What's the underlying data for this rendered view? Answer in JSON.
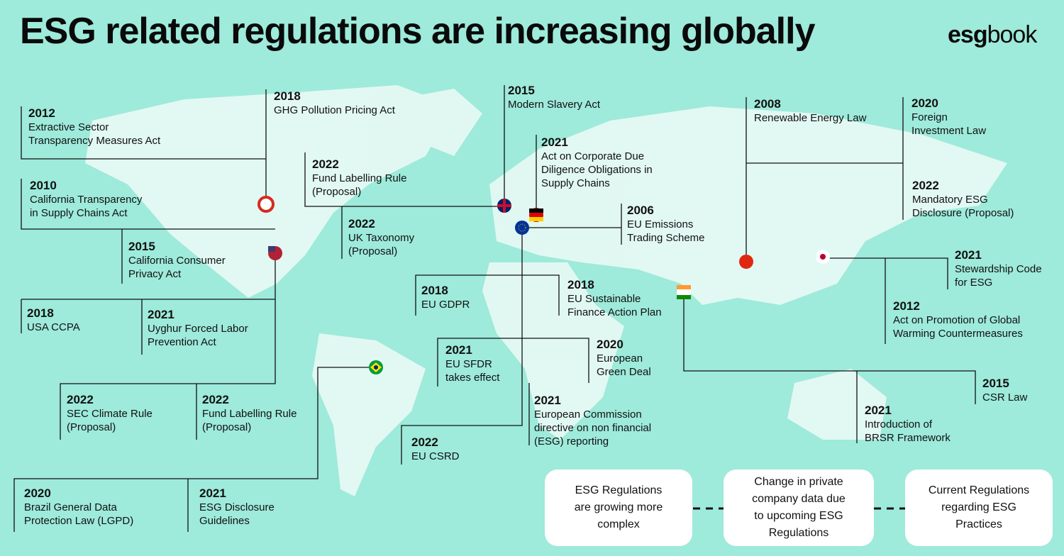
{
  "header": {
    "title": "ESG related regulations are increasing globally",
    "logo": {
      "bold": "esg",
      "regular": "book"
    }
  },
  "entries": [
    {
      "year": "2012",
      "lines": [
        "Extractive Sector",
        "Transparency Measures Act"
      ]
    },
    {
      "year": "2018",
      "lines": [
        "GHG Pollution Pricing Act"
      ]
    },
    {
      "year": "2015",
      "lines": [
        "Modern Slavery Act"
      ]
    },
    {
      "year": "2008",
      "lines": [
        "Renewable Energy Law"
      ]
    },
    {
      "year": "2020",
      "lines": [
        "Foreign",
        "Investment Law"
      ]
    },
    {
      "year": "2021",
      "lines": [
        "Act on Corporate Due",
        "Diligence Obligations in",
        "Supply Chains"
      ]
    },
    {
      "year": "2022",
      "lines": [
        "Fund Labelling Rule",
        "(Proposal)"
      ]
    },
    {
      "year": "2010",
      "lines": [
        "California Transparency",
        "in Supply Chains Act"
      ]
    },
    {
      "year": "2022",
      "lines": [
        "Mandatory ESG",
        "Disclosure (Proposal)"
      ]
    },
    {
      "year": "2006",
      "lines": [
        "EU Emissions",
        "Trading Scheme"
      ]
    },
    {
      "year": "2022",
      "lines": [
        "UK Taxonomy",
        "(Proposal)"
      ]
    },
    {
      "year": "2015",
      "lines": [
        "California Consumer",
        "Privacy Act"
      ]
    },
    {
      "year": "2021",
      "lines": [
        "Stewardship Code",
        "for ESG"
      ]
    },
    {
      "year": "2018",
      "lines": [
        "EU GDPR"
      ]
    },
    {
      "year": "2018",
      "lines": [
        "EU Sustainable",
        "Finance Action Plan"
      ]
    },
    {
      "year": "2018",
      "lines": [
        "USA CCPA"
      ]
    },
    {
      "year": "2021",
      "lines": [
        "Uyghur Forced Labor",
        "Prevention Act"
      ]
    },
    {
      "year": "2012",
      "lines": [
        "Act on Promotion of Global",
        "Warming Countermeasures"
      ]
    },
    {
      "year": "2020",
      "lines": [
        "European",
        "Green Deal"
      ]
    },
    {
      "year": "2021",
      "lines": [
        "EU SFDR",
        "takes effect"
      ]
    },
    {
      "year": "2015",
      "lines": [
        "CSR Law"
      ]
    },
    {
      "year": "2022",
      "lines": [
        "SEC Climate Rule",
        "(Proposal)"
      ]
    },
    {
      "year": "2022",
      "lines": [
        "Fund Labelling Rule",
        "(Proposal)"
      ]
    },
    {
      "year": "2021",
      "lines": [
        "European Commission",
        "directive on non financial",
        "(ESG) reporting"
      ]
    },
    {
      "year": "2021",
      "lines": [
        "Introduction of",
        "BRSR Framework"
      ]
    },
    {
      "year": "2022",
      "lines": [
        "EU CSRD"
      ]
    },
    {
      "year": "2020",
      "lines": [
        "Brazil General Data",
        "Protection Law (LGPD)"
      ]
    },
    {
      "year": "2021",
      "lines": [
        "ESG Disclosure",
        "Guidelines"
      ]
    }
  ],
  "boxes": [
    {
      "lines": [
        "ESG Regulations",
        "are growing more",
        "complex"
      ]
    },
    {
      "lines": [
        "Change in private",
        "company data due",
        "to upcoming ESG",
        "Regulations"
      ]
    },
    {
      "lines": [
        "Current Regulations",
        "regarding ESG",
        "Practices"
      ]
    }
  ]
}
